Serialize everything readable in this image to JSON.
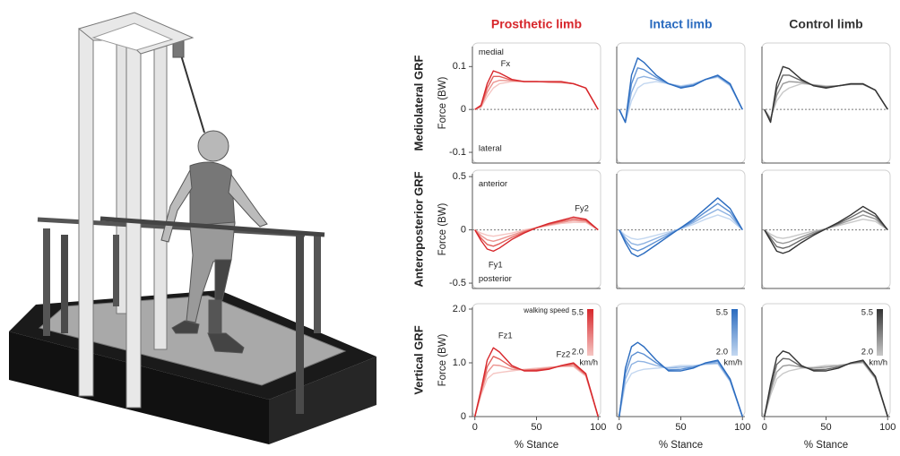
{
  "columns": [
    "Prosthetic limb",
    "Intact limb",
    "Control limb"
  ],
  "row_labels": [
    "Mediolateral GRF",
    "Anteroposterior GRF",
    "Vertical GRF"
  ],
  "chart_data": [
    {
      "type": "line",
      "ylabel": "Force (BW)",
      "xlim": [
        -2,
        102
      ],
      "ylim": [
        -0.125,
        0.155
      ],
      "yticks": [
        -0.1,
        0,
        0.1
      ],
      "x": [
        0,
        5,
        10,
        15,
        20,
        30,
        40,
        50,
        60,
        70,
        80,
        90,
        100
      ],
      "series": [
        {
          "color": "#d7262b",
          "values": [
            0,
            0.01,
            0.06,
            0.09,
            0.085,
            0.07,
            0.065,
            0.065,
            0.065,
            0.065,
            0.06,
            0.05,
            0
          ]
        },
        {
          "color": "#e2605c",
          "values": [
            0,
            0.008,
            0.05,
            0.077,
            0.077,
            0.068,
            0.065,
            0.065,
            0.064,
            0.064,
            0.06,
            0.05,
            0
          ]
        },
        {
          "color": "#ec9591",
          "values": [
            0,
            0.007,
            0.04,
            0.063,
            0.068,
            0.067,
            0.065,
            0.065,
            0.064,
            0.063,
            0.06,
            0.05,
            0
          ]
        },
        {
          "color": "#f5c6c3",
          "values": [
            0,
            0.005,
            0.03,
            0.05,
            0.06,
            0.065,
            0.065,
            0.065,
            0.063,
            0.062,
            0.06,
            0.05,
            0
          ]
        }
      ],
      "annotations": [
        {
          "text": "medial",
          "x": 3,
          "y": 0.133
        },
        {
          "text": "Fx",
          "x": 21,
          "y": 0.106
        },
        {
          "text": "lateral",
          "x": 3,
          "y": -0.092
        }
      ]
    },
    {
      "type": "line",
      "xlim": [
        -2,
        102
      ],
      "ylim": [
        -0.125,
        0.155
      ],
      "x": [
        0,
        5,
        10,
        15,
        20,
        30,
        40,
        50,
        60,
        70,
        80,
        90,
        100
      ],
      "series": [
        {
          "color": "#2a6bbf",
          "values": [
            0,
            -0.03,
            0.08,
            0.12,
            0.11,
            0.08,
            0.06,
            0.05,
            0.055,
            0.07,
            0.08,
            0.06,
            0
          ]
        },
        {
          "color": "#5b8fd2",
          "values": [
            0,
            -0.03,
            0.06,
            0.097,
            0.093,
            0.075,
            0.06,
            0.052,
            0.057,
            0.07,
            0.078,
            0.058,
            0
          ]
        },
        {
          "color": "#8fb3e2",
          "values": [
            0,
            -0.03,
            0.04,
            0.073,
            0.077,
            0.07,
            0.06,
            0.053,
            0.058,
            0.07,
            0.077,
            0.057,
            0
          ]
        },
        {
          "color": "#c3d7f0",
          "values": [
            0,
            -0.03,
            0.02,
            0.05,
            0.06,
            0.065,
            0.06,
            0.055,
            0.06,
            0.07,
            0.075,
            0.055,
            0
          ]
        }
      ]
    },
    {
      "type": "line",
      "xlim": [
        -2,
        102
      ],
      "ylim": [
        -0.125,
        0.155
      ],
      "x": [
        0,
        5,
        10,
        15,
        20,
        30,
        40,
        50,
        60,
        70,
        80,
        90,
        100
      ],
      "series": [
        {
          "color": "#333333",
          "values": [
            0,
            -0.03,
            0.06,
            0.1,
            0.095,
            0.07,
            0.055,
            0.05,
            0.055,
            0.06,
            0.06,
            0.045,
            0
          ]
        },
        {
          "color": "#666666",
          "values": [
            0,
            -0.027,
            0.047,
            0.08,
            0.08,
            0.067,
            0.056,
            0.052,
            0.055,
            0.059,
            0.059,
            0.045,
            0
          ]
        },
        {
          "color": "#999999",
          "values": [
            0,
            -0.023,
            0.033,
            0.06,
            0.065,
            0.063,
            0.057,
            0.053,
            0.055,
            0.059,
            0.059,
            0.045,
            0
          ]
        },
        {
          "color": "#c8c8c8",
          "values": [
            0,
            -0.02,
            0.02,
            0.04,
            0.05,
            0.06,
            0.058,
            0.055,
            0.055,
            0.058,
            0.058,
            0.045,
            0
          ]
        }
      ]
    },
    {
      "type": "line",
      "ylabel": "Force (BW)",
      "xlim": [
        -2,
        102
      ],
      "ylim": [
        -0.55,
        0.56
      ],
      "yticks": [
        -0.5,
        0,
        0.5
      ],
      "x": [
        0,
        5,
        10,
        15,
        20,
        30,
        40,
        50,
        60,
        70,
        80,
        90,
        100
      ],
      "series": [
        {
          "color": "#d7262b",
          "values": [
            0,
            -0.1,
            -0.18,
            -0.2,
            -0.17,
            -0.09,
            -0.03,
            0.02,
            0.06,
            0.09,
            0.12,
            0.1,
            0
          ]
        },
        {
          "color": "#e2605c",
          "values": [
            0,
            -0.077,
            -0.137,
            -0.153,
            -0.13,
            -0.07,
            -0.02,
            0.02,
            0.053,
            0.08,
            0.103,
            0.09,
            0
          ]
        },
        {
          "color": "#ec9591",
          "values": [
            0,
            -0.053,
            -0.093,
            -0.107,
            -0.09,
            -0.05,
            -0.01,
            0.02,
            0.047,
            0.07,
            0.087,
            0.08,
            0
          ]
        },
        {
          "color": "#f5c6c3",
          "values": [
            0,
            -0.03,
            -0.05,
            -0.06,
            -0.05,
            -0.03,
            0,
            0.02,
            0.04,
            0.06,
            0.07,
            0.07,
            0
          ]
        }
      ],
      "annotations": [
        {
          "text": "anterior",
          "x": 3,
          "y": 0.43
        },
        {
          "text": "Fy1",
          "x": 11,
          "y": -0.33
        },
        {
          "text": "Fy2",
          "x": 81,
          "y": 0.2
        },
        {
          "text": "posterior",
          "x": 3,
          "y": -0.46
        }
      ]
    },
    {
      "type": "line",
      "xlim": [
        -2,
        102
      ],
      "ylim": [
        -0.55,
        0.56
      ],
      "x": [
        0,
        5,
        10,
        15,
        20,
        30,
        40,
        50,
        60,
        70,
        80,
        90,
        100
      ],
      "series": [
        {
          "color": "#2a6bbf",
          "values": [
            0,
            -0.12,
            -0.22,
            -0.25,
            -0.22,
            -0.14,
            -0.06,
            0.02,
            0.1,
            0.2,
            0.3,
            0.2,
            0
          ]
        },
        {
          "color": "#5b8fd2",
          "values": [
            0,
            -0.097,
            -0.173,
            -0.197,
            -0.173,
            -0.11,
            -0.047,
            0.017,
            0.083,
            0.167,
            0.247,
            0.167,
            0
          ]
        },
        {
          "color": "#8fb3e2",
          "values": [
            0,
            -0.073,
            -0.127,
            -0.143,
            -0.127,
            -0.08,
            -0.033,
            0.013,
            0.067,
            0.133,
            0.193,
            0.133,
            0
          ]
        },
        {
          "color": "#c3d7f0",
          "values": [
            0,
            -0.05,
            -0.08,
            -0.09,
            -0.08,
            -0.05,
            -0.02,
            0.01,
            0.05,
            0.1,
            0.14,
            0.1,
            0
          ]
        }
      ]
    },
    {
      "type": "line",
      "xlim": [
        -2,
        102
      ],
      "ylim": [
        -0.55,
        0.56
      ],
      "x": [
        0,
        5,
        10,
        15,
        20,
        30,
        40,
        50,
        60,
        70,
        80,
        90,
        100
      ],
      "series": [
        {
          "color": "#333333",
          "values": [
            0,
            -0.1,
            -0.2,
            -0.22,
            -0.2,
            -0.12,
            -0.05,
            0.01,
            0.07,
            0.14,
            0.22,
            0.15,
            0
          ]
        },
        {
          "color": "#666666",
          "values": [
            0,
            -0.08,
            -0.157,
            -0.173,
            -0.157,
            -0.093,
            -0.037,
            0.01,
            0.06,
            0.117,
            0.18,
            0.127,
            0
          ]
        },
        {
          "color": "#999999",
          "values": [
            0,
            -0.06,
            -0.113,
            -0.127,
            -0.113,
            -0.067,
            -0.023,
            0.01,
            0.05,
            0.093,
            0.14,
            0.103,
            0
          ]
        },
        {
          "color": "#c8c8c8",
          "values": [
            0,
            -0.04,
            -0.07,
            -0.08,
            -0.07,
            -0.04,
            -0.01,
            0.01,
            0.04,
            0.07,
            0.1,
            0.08,
            0
          ]
        }
      ]
    },
    {
      "type": "line",
      "ylabel": "Force (BW)",
      "xlabel": "% Stance",
      "xlim": [
        -2,
        102
      ],
      "ylim": [
        0,
        2.1
      ],
      "yticks": [
        0,
        {
          "value": 1,
          "label": "1.0"
        },
        {
          "value": 2,
          "label": "2.0"
        }
      ],
      "xticks": [
        0,
        50,
        100
      ],
      "x": [
        0,
        5,
        10,
        15,
        20,
        30,
        40,
        50,
        60,
        70,
        80,
        90,
        100
      ],
      "series": [
        {
          "color": "#d7262b",
          "values": [
            0,
            0.5,
            1.05,
            1.28,
            1.2,
            0.95,
            0.85,
            0.85,
            0.88,
            0.95,
            1.0,
            0.8,
            0
          ]
        },
        {
          "color": "#e2605c",
          "values": [
            0,
            0.47,
            0.93,
            1.12,
            1.07,
            0.92,
            0.86,
            0.87,
            0.89,
            0.94,
            0.98,
            0.78,
            0
          ]
        },
        {
          "color": "#ec9591",
          "values": [
            0,
            0.43,
            0.82,
            0.96,
            0.95,
            0.88,
            0.87,
            0.88,
            0.91,
            0.94,
            0.95,
            0.77,
            0
          ]
        },
        {
          "color": "#f5c6c3",
          "values": [
            0,
            0.4,
            0.7,
            0.8,
            0.82,
            0.85,
            0.88,
            0.9,
            0.92,
            0.93,
            0.93,
            0.75,
            0
          ]
        }
      ],
      "annotations": [
        {
          "text": "Fz1",
          "x": 19,
          "y": 1.5
        },
        {
          "text": "Fz2",
          "x": 66,
          "y": 1.15
        }
      ],
      "legend": {
        "title": "walking speed",
        "labels": [
          "5.5",
          "2.0"
        ],
        "unit": "km/h"
      }
    },
    {
      "type": "line",
      "xlabel": "% Stance",
      "xlim": [
        -2,
        102
      ],
      "ylim": [
        0,
        2.1
      ],
      "xticks": [
        0,
        50,
        100
      ],
      "x": [
        0,
        5,
        10,
        15,
        20,
        30,
        40,
        50,
        60,
        70,
        80,
        90,
        100
      ],
      "series": [
        {
          "color": "#2a6bbf",
          "values": [
            0,
            0.9,
            1.3,
            1.38,
            1.3,
            1.05,
            0.85,
            0.85,
            0.9,
            1.0,
            1.05,
            0.7,
            0
          ]
        },
        {
          "color": "#5b8fd2",
          "values": [
            0,
            0.8,
            1.13,
            1.2,
            1.16,
            1.0,
            0.87,
            0.88,
            0.92,
            0.99,
            1.03,
            0.68,
            0
          ]
        },
        {
          "color": "#8fb3e2",
          "values": [
            0,
            0.7,
            0.97,
            1.03,
            1.02,
            0.95,
            0.9,
            0.92,
            0.93,
            0.98,
            1.0,
            0.67,
            0
          ]
        },
        {
          "color": "#c3d7f0",
          "values": [
            0,
            0.6,
            0.8,
            0.85,
            0.88,
            0.9,
            0.92,
            0.95,
            0.95,
            0.97,
            0.98,
            0.65,
            0
          ]
        }
      ],
      "legend": {
        "labels": [
          "5.5",
          "2.0"
        ],
        "unit": "km/h"
      }
    },
    {
      "type": "line",
      "xlabel": "% Stance",
      "xlim": [
        -2,
        102
      ],
      "ylim": [
        0,
        2.1
      ],
      "xticks": [
        0,
        50,
        100
      ],
      "x": [
        0,
        5,
        10,
        15,
        20,
        30,
        40,
        50,
        60,
        70,
        80,
        90,
        100
      ],
      "series": [
        {
          "color": "#333333",
          "values": [
            0,
            0.6,
            1.1,
            1.22,
            1.18,
            0.95,
            0.85,
            0.85,
            0.9,
            1.0,
            1.05,
            0.75,
            0
          ]
        },
        {
          "color": "#666666",
          "values": [
            0,
            0.53,
            0.97,
            1.08,
            1.07,
            0.93,
            0.87,
            0.88,
            0.92,
            0.99,
            1.03,
            0.73,
            0
          ]
        },
        {
          "color": "#999999",
          "values": [
            0,
            0.47,
            0.83,
            0.94,
            0.96,
            0.92,
            0.9,
            0.92,
            0.94,
            0.99,
            1.02,
            0.72,
            0
          ]
        },
        {
          "color": "#c8c8c8",
          "values": [
            0,
            0.4,
            0.7,
            0.8,
            0.85,
            0.9,
            0.92,
            0.95,
            0.96,
            0.98,
            1.0,
            0.7,
            0
          ]
        }
      ],
      "legend": {
        "labels": [
          "5.5",
          "2.0"
        ],
        "unit": "km/h"
      }
    }
  ]
}
